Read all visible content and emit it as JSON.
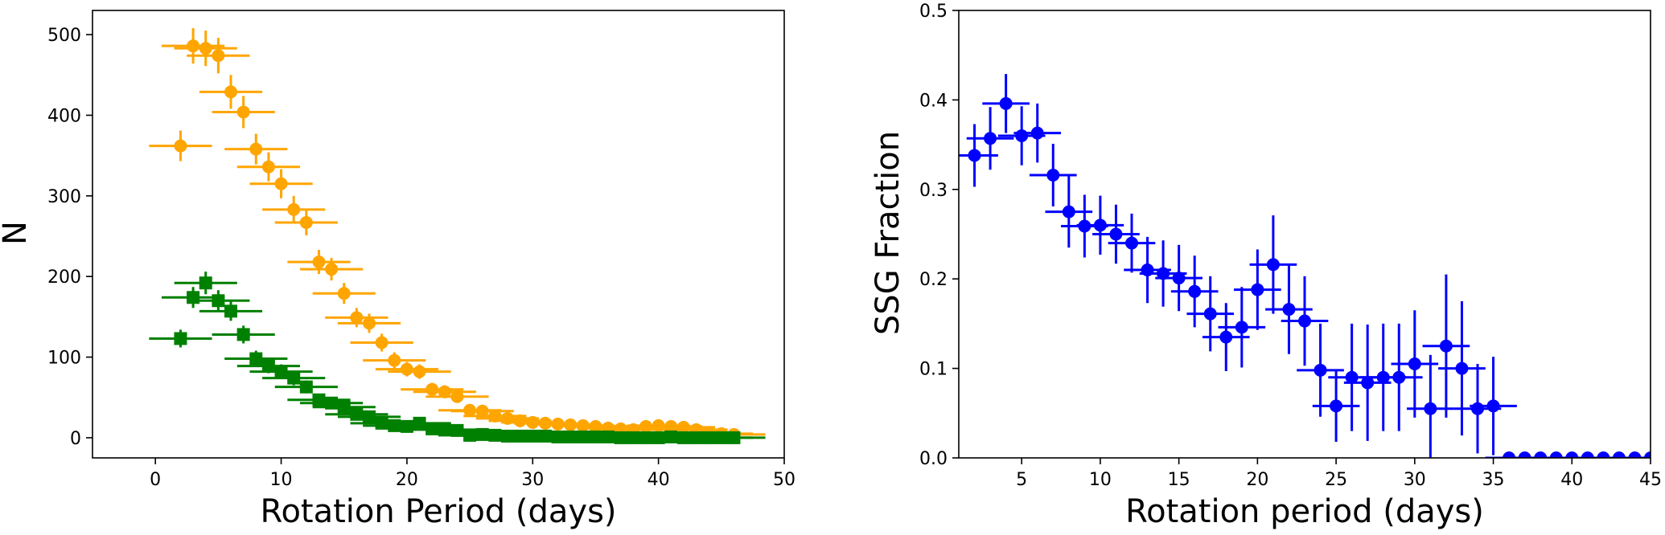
{
  "chart_data": [
    {
      "type": "scatter",
      "xlabel": "Rotation Period (days)",
      "ylabel": "N",
      "xlim": [
        -5,
        50
      ],
      "ylim": [
        -25,
        530
      ],
      "xticks": [
        0,
        10,
        20,
        30,
        40,
        50
      ],
      "yticks": [
        0,
        100,
        200,
        300,
        400,
        500
      ],
      "grid": false,
      "colors": {
        "orange": "#ffa500",
        "green": "#008000"
      },
      "series": [
        {
          "color": "#ffa500",
          "marker": "circle",
          "x": [
            2,
            3,
            4,
            5,
            6,
            7,
            8,
            9,
            10,
            11,
            12,
            13,
            14,
            15,
            16,
            17,
            18,
            19,
            20,
            21,
            22,
            23,
            24,
            25,
            26,
            27,
            28,
            29,
            30,
            31,
            32,
            33,
            34,
            35,
            36,
            37,
            38,
            39,
            40,
            41,
            42,
            43,
            44,
            45,
            46
          ],
          "y": [
            362,
            486,
            483,
            474,
            429,
            404,
            358,
            336,
            315,
            283,
            267,
            218,
            209,
            179,
            149,
            142,
            118,
            96,
            85,
            82,
            60,
            57,
            51,
            34,
            33,
            27,
            24,
            21,
            19,
            18,
            17,
            16,
            15,
            14,
            12,
            11,
            10,
            14,
            15,
            14,
            13,
            10,
            6,
            5,
            4
          ],
          "xerr": 2.5,
          "yerr": [
            19,
            22,
            22,
            22,
            21,
            20,
            19,
            18,
            18,
            17,
            16,
            15,
            14,
            13,
            12,
            12,
            11,
            10,
            9,
            9,
            8,
            8,
            7,
            6,
            6,
            5,
            5,
            5,
            4,
            4,
            4,
            4,
            4,
            4,
            3,
            3,
            3,
            4,
            4,
            4,
            4,
            3,
            2,
            2,
            2
          ]
        },
        {
          "color": "#008000",
          "marker": "square",
          "x": [
            2,
            3,
            4,
            5,
            6,
            7,
            8,
            9,
            10,
            11,
            12,
            13,
            14,
            15,
            16,
            17,
            18,
            19,
            20,
            21,
            22,
            23,
            24,
            25,
            26,
            27,
            28,
            29,
            30,
            31,
            32,
            33,
            34,
            35,
            36,
            37,
            38,
            39,
            40,
            41,
            42,
            43,
            44,
            45,
            46
          ],
          "y": [
            123,
            174,
            192,
            170,
            157,
            128,
            98,
            89,
            82,
            74,
            63,
            47,
            43,
            38,
            29,
            26,
            18,
            15,
            14,
            18,
            11,
            10,
            9,
            3,
            4,
            3,
            2,
            2,
            2,
            2,
            1,
            1,
            1,
            1,
            1,
            0,
            0,
            0,
            0,
            1,
            0,
            0,
            0,
            0,
            0
          ],
          "xerr": 2.5,
          "yerr": [
            11,
            13,
            14,
            13,
            12,
            11,
            10,
            9,
            9,
            9,
            8,
            7,
            7,
            6,
            5,
            5,
            4,
            4,
            4,
            4,
            3,
            3,
            3,
            2,
            2,
            2,
            1,
            1,
            1,
            1,
            1,
            1,
            1,
            1,
            1,
            0,
            0,
            0,
            0,
            1,
            0,
            0,
            0,
            0,
            0
          ]
        }
      ]
    },
    {
      "type": "scatter",
      "xlabel": "Rotation period (days)",
      "ylabel": "SSG Fraction",
      "xlim": [
        1,
        45
      ],
      "ylim": [
        0.0,
        0.5
      ],
      "xticks": [
        5,
        10,
        15,
        20,
        25,
        30,
        35,
        40,
        45
      ],
      "yticks": [
        0.0,
        0.1,
        0.2,
        0.3,
        0.4,
        0.5
      ],
      "ytick_labels": [
        "0.0",
        "0.1",
        "0.2",
        "0.3",
        "0.4",
        "0.5"
      ],
      "grid": false,
      "series": [
        {
          "color": "#0000ff",
          "marker": "circle",
          "x": [
            2,
            3,
            4,
            5,
            6,
            7,
            8,
            9,
            10,
            11,
            12,
            13,
            14,
            15,
            16,
            17,
            18,
            19,
            20,
            21,
            22,
            23,
            24,
            25,
            26,
            27,
            28,
            29,
            30,
            31,
            32,
            33,
            34,
            35,
            36,
            37,
            38,
            39,
            40,
            41,
            42,
            43,
            44,
            45
          ],
          "y": [
            0.338,
            0.357,
            0.396,
            0.36,
            0.363,
            0.316,
            0.275,
            0.259,
            0.26,
            0.25,
            0.24,
            0.21,
            0.206,
            0.201,
            0.186,
            0.161,
            0.135,
            0.146,
            0.188,
            0.216,
            0.166,
            0.153,
            0.098,
            0.058,
            0.09,
            0.084,
            0.09,
            0.09,
            0.105,
            0.055,
            0.125,
            0.1,
            0.055,
            0.058,
            0.0,
            0.0,
            0.0,
            0.0,
            0.0,
            0.0,
            0.0,
            0.0,
            0.0,
            0.0
          ],
          "xerr": 1.5,
          "yerr": [
            0.035,
            0.035,
            0.033,
            0.033,
            0.033,
            0.035,
            0.04,
            0.035,
            0.033,
            0.033,
            0.033,
            0.037,
            0.037,
            0.037,
            0.04,
            0.042,
            0.038,
            0.045,
            0.045,
            0.055,
            0.05,
            0.05,
            0.052,
            0.04,
            0.06,
            0.065,
            0.06,
            0.06,
            0.06,
            0.06,
            0.08,
            0.075,
            0.05,
            0.055,
            0.0,
            0.0,
            0.0,
            0.0,
            0.0,
            0.0,
            0.0,
            0.0,
            0.0,
            0.0
          ]
        }
      ]
    }
  ]
}
